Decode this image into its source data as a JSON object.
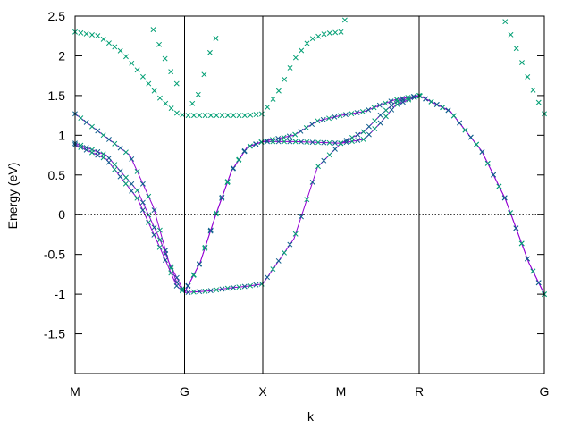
{
  "chart_data": {
    "type": "scatter",
    "title": "",
    "xlabel": "k",
    "ylabel": "Energy (eV)",
    "ylim": [
      -2.0,
      2.5
    ],
    "xlim": [
      0,
      6.0
    ],
    "y_ticks": [
      2.5,
      2,
      1.5,
      1,
      0.5,
      0,
      -0.5,
      -1,
      -1.5
    ],
    "y_tick_labels": [
      "2.5",
      "2",
      "1.5",
      "1",
      "0.5",
      "0",
      "-0.5",
      "-1",
      "-1.5"
    ],
    "k_points": [
      {
        "label": "M",
        "x": 0.0
      },
      {
        "label": "G",
        "x": 1.4
      },
      {
        "label": "X",
        "x": 2.4
      },
      {
        "label": "M",
        "x": 3.4
      },
      {
        "label": "R",
        "x": 4.4
      },
      {
        "label": "G",
        "x": 6.0
      }
    ],
    "fermi_level": 0,
    "grid": false,
    "legend": "none",
    "colors": {
      "line": "#9400d3",
      "marker": "#009e73",
      "marker_dark": "#0b5f8a",
      "axis": "#000000"
    },
    "series": [
      {
        "style": "line+markers",
        "x": [
          0.0,
          0.7,
          1.0,
          1.2,
          1.4,
          1.7,
          2.0,
          2.2,
          2.4,
          2.8,
          3.1,
          3.4,
          3.7,
          3.9,
          4.1,
          4.4,
          4.8,
          5.2,
          5.5,
          5.8,
          6.0
        ],
        "y": [
          1.27,
          0.75,
          0.1,
          -0.6,
          -0.98,
          -0.96,
          -0.92,
          -0.9,
          -0.87,
          -0.3,
          0.6,
          0.9,
          1.05,
          1.25,
          1.42,
          1.5,
          1.3,
          0.8,
          0.2,
          -0.6,
          -1.0
        ]
      },
      {
        "style": "line+markers",
        "x": [
          0.0,
          0.4,
          0.8,
          1.1,
          1.3,
          1.4,
          1.6,
          1.8,
          2.0,
          2.2,
          2.4,
          2.8,
          3.1,
          3.4,
          3.7,
          3.9,
          4.1,
          4.4,
          4.8,
          5.2,
          5.5,
          5.8,
          6.0
        ],
        "y": [
          0.9,
          0.75,
          0.3,
          -0.35,
          -0.85,
          -0.98,
          -0.6,
          0.0,
          0.55,
          0.85,
          0.92,
          0.92,
          0.91,
          0.9,
          0.95,
          1.15,
          1.38,
          1.5,
          1.3,
          0.8,
          0.2,
          -0.6,
          -1.0
        ]
      },
      {
        "style": "line+markers",
        "x": [
          0.0,
          0.4,
          0.8,
          1.1,
          1.3,
          1.4,
          1.6,
          1.8,
          2.0,
          2.2,
          2.4,
          2.8,
          3.1,
          3.4,
          3.7,
          3.9,
          4.1,
          4.4
        ],
        "y": [
          0.88,
          0.7,
          0.2,
          -0.45,
          -0.9,
          -0.98,
          -0.6,
          0.0,
          0.55,
          0.85,
          0.92,
          1.0,
          1.18,
          1.25,
          1.3,
          1.38,
          1.45,
          1.5
        ]
      },
      {
        "style": "markers",
        "x": [
          0.0,
          0.3,
          0.6,
          0.9,
          1.1,
          1.3,
          1.4,
          1.6,
          1.8,
          2.0,
          2.2,
          2.4,
          2.6,
          2.8,
          3.0,
          3.2,
          3.4
        ],
        "y": [
          2.3,
          2.25,
          2.05,
          1.7,
          1.45,
          1.28,
          1.25,
          1.25,
          1.25,
          1.25,
          1.25,
          1.27,
          1.55,
          1.95,
          2.2,
          2.28,
          2.3
        ]
      },
      {
        "style": "markers",
        "x": [
          1.0,
          1.1,
          1.2,
          1.3
        ],
        "y": [
          2.33,
          2.08,
          1.85,
          1.65
        ]
      },
      {
        "style": "markers",
        "x": [
          1.5,
          1.6,
          1.7,
          1.8
        ],
        "y": [
          1.4,
          1.55,
          1.98,
          2.22
        ]
      },
      {
        "style": "markers",
        "x": [
          3.45
        ],
        "y": [
          2.45
        ]
      },
      {
        "style": "markers",
        "x": [
          5.5,
          5.6,
          5.7,
          5.8,
          5.9,
          6.0
        ],
        "y": [
          2.43,
          2.2,
          1.95,
          1.7,
          1.47,
          1.27
        ]
      }
    ]
  }
}
